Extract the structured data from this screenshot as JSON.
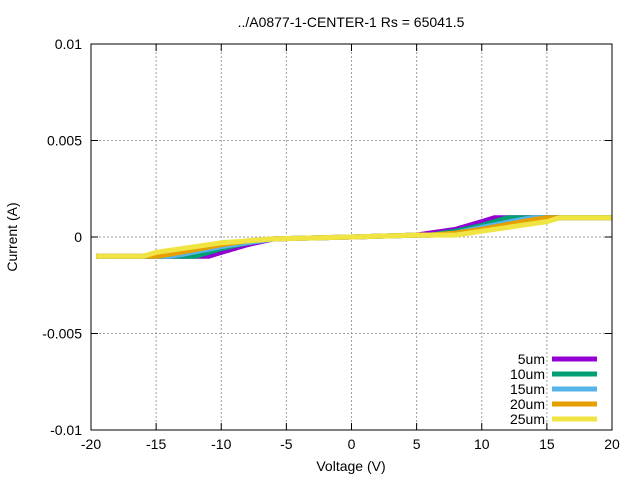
{
  "chart_data": {
    "type": "line",
    "title": "../A0877-1-CENTER-1 Rs  = 65041.5",
    "xlabel": "Voltage (V)",
    "ylabel": "Current (A)",
    "xlim": [
      -20,
      20
    ],
    "ylim": [
      -0.01,
      0.01
    ],
    "x_ticks": [
      "-20",
      "-15",
      "-10",
      "-5",
      "0",
      "5",
      "10",
      "15",
      "20"
    ],
    "y_ticks": [
      "0.01",
      "0.005",
      "0",
      "-0.005",
      "-0.01"
    ],
    "x_tick_values": [
      -20,
      -15,
      -10,
      -5,
      0,
      5,
      10,
      15,
      20
    ],
    "y_tick_values": [
      0.01,
      0.005,
      0,
      -0.005,
      -0.01
    ],
    "grid": true,
    "legend_position": "bottom-right",
    "series": [
      {
        "name": "5um",
        "color": "#9400d3",
        "x": [
          -20,
          -12,
          -11,
          -10,
          -8,
          -6,
          0,
          5,
          6,
          8,
          10,
          11,
          12,
          20
        ],
        "y": [
          -0.001,
          -0.001,
          -0.001,
          -0.0008,
          -0.0004,
          -0.0001,
          0,
          0.0001,
          0.0002,
          0.0004,
          0.0008,
          0.001,
          0.001,
          0.001
        ]
      },
      {
        "name": "10um",
        "color": "#009e73",
        "x": [
          -20,
          -13,
          -12,
          -10,
          -8,
          -6,
          0,
          5,
          6,
          8,
          10,
          12,
          13,
          20
        ],
        "y": [
          -0.001,
          -0.001,
          -0.001,
          -0.0006,
          -0.0003,
          -0.0001,
          0,
          0.0001,
          0.0001,
          0.0003,
          0.0006,
          0.001,
          0.001,
          0.001
        ]
      },
      {
        "name": "15um",
        "color": "#56b4e9",
        "x": [
          -20,
          -14,
          -13,
          -10,
          -8,
          -6,
          0,
          5,
          6,
          8,
          10,
          13,
          14,
          20
        ],
        "y": [
          -0.001,
          -0.001,
          -0.0009,
          -0.0005,
          -0.0003,
          -0.0001,
          0,
          0.0001,
          0.0001,
          0.0002,
          0.0005,
          0.0009,
          0.001,
          0.001
        ]
      },
      {
        "name": "20um",
        "color": "#e69f00",
        "x": [
          -20,
          -15,
          -14,
          -10,
          -8,
          -6,
          0,
          5,
          6,
          8,
          10,
          14,
          15,
          20
        ],
        "y": [
          -0.001,
          -0.001,
          -0.0009,
          -0.0004,
          -0.0002,
          -0.0001,
          0,
          0.0001,
          0.0001,
          0.0002,
          0.0004,
          0.0009,
          0.001,
          0.001
        ]
      },
      {
        "name": "25um",
        "color": "#f0e442",
        "x": [
          -20,
          -16,
          -15,
          -10,
          -8,
          -6,
          0,
          5,
          6,
          8,
          10,
          15,
          16,
          20
        ],
        "y": [
          -0.001,
          -0.001,
          -0.0008,
          -0.0003,
          -0.0002,
          -0.0001,
          0,
          0.0001,
          0.0001,
          0.0001,
          0.0003,
          0.0008,
          0.001,
          0.001
        ]
      }
    ]
  }
}
